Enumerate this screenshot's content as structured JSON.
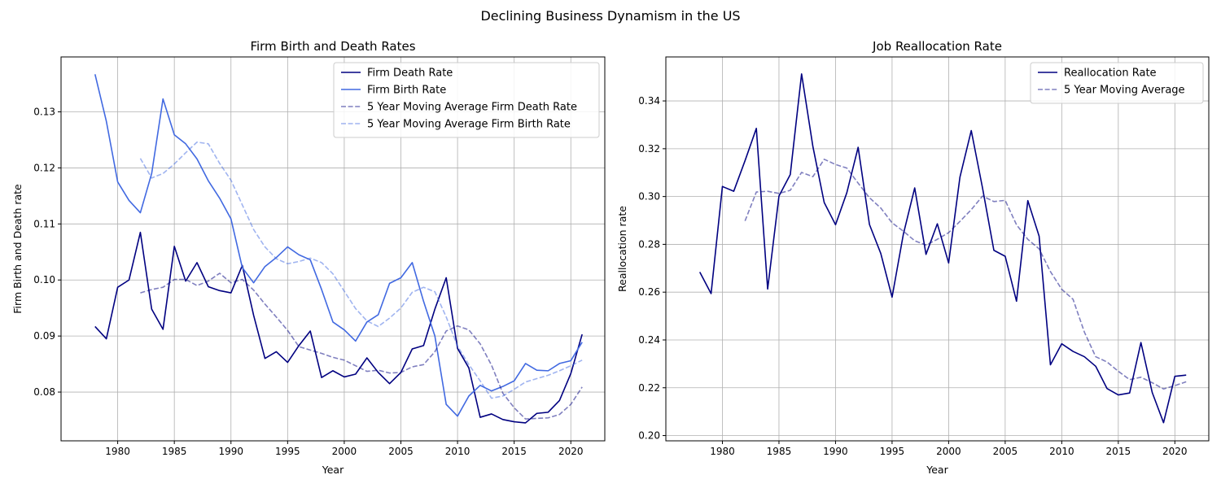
{
  "figure_title": "Declining Business Dynamism in the US",
  "chart_data": [
    {
      "type": "line",
      "title": "Firm Birth and Death Rates",
      "xlabel": "Year",
      "ylabel": "Firm Birth and Death rate",
      "xlim": [
        1975,
        2023
      ],
      "ylim": [
        0.0713,
        0.1398
      ],
      "xticks": [
        1980,
        1985,
        1990,
        1995,
        2000,
        2005,
        2010,
        2015,
        2020
      ],
      "xtick_labels": [
        "1980",
        "1985",
        "1990",
        "1995",
        "2000",
        "2005",
        "2010",
        "2015",
        "2020"
      ],
      "yticks": [
        0.08,
        0.09,
        0.1,
        0.11,
        0.12,
        0.13
      ],
      "ytick_labels": [
        "0.08",
        "0.09",
        "0.10",
        "0.11",
        "0.12",
        "0.13"
      ],
      "grid": true,
      "legend_position": "top-right",
      "series": [
        {
          "name": "Firm Death Rate",
          "color": "#000080",
          "dashed": false,
          "opacity": 1,
          "x": [
            1978,
            1979,
            1980,
            1981,
            1982,
            1983,
            1984,
            1985,
            1986,
            1987,
            1988,
            1989,
            1990,
            1991,
            1992,
            1993,
            1994,
            1995,
            1996,
            1997,
            1998,
            1999,
            2000,
            2001,
            2002,
            2003,
            2004,
            2005,
            2006,
            2007,
            2008,
            2009,
            2010,
            2011,
            2012,
            2013,
            2014,
            2015,
            2016,
            2017,
            2018,
            2019,
            2020,
            2021
          ],
          "values": [
            0.0917,
            0.0895,
            0.0987,
            0.1,
            0.1085,
            0.0948,
            0.0912,
            0.106,
            0.0998,
            0.1031,
            0.0988,
            0.0981,
            0.0977,
            0.1026,
            0.0937,
            0.086,
            0.0872,
            0.0853,
            0.0883,
            0.0909,
            0.0826,
            0.0838,
            0.0827,
            0.0832,
            0.0861,
            0.0835,
            0.0815,
            0.0835,
            0.0877,
            0.0883,
            0.0948,
            0.1004,
            0.0878,
            0.0843,
            0.0755,
            0.0761,
            0.0751,
            0.0747,
            0.0745,
            0.0762,
            0.0764,
            0.0785,
            0.0833,
            0.0903
          ]
        },
        {
          "name": "Firm Birth Rate",
          "color": "#4169e1",
          "dashed": false,
          "opacity": 1,
          "x": [
            1978,
            1979,
            1980,
            1981,
            1982,
            1983,
            1984,
            1985,
            1986,
            1987,
            1988,
            1989,
            1990,
            1991,
            1992,
            1993,
            1994,
            1995,
            1996,
            1997,
            1998,
            1999,
            2000,
            2001,
            2002,
            2003,
            2004,
            2005,
            2006,
            2007,
            2008,
            2009,
            2010,
            2011,
            2012,
            2013,
            2014,
            2015,
            2016,
            2017,
            2018,
            2019,
            2020,
            2021
          ],
          "values": [
            0.1367,
            0.1283,
            0.1175,
            0.1142,
            0.112,
            0.119,
            0.1323,
            0.1259,
            0.1243,
            0.1216,
            0.1177,
            0.1146,
            0.1109,
            0.1022,
            0.0995,
            0.1024,
            0.104,
            0.1059,
            0.1045,
            0.1036,
            0.0983,
            0.0925,
            0.0911,
            0.0891,
            0.0925,
            0.0938,
            0.0994,
            0.1004,
            0.1031,
            0.0962,
            0.09,
            0.0778,
            0.0757,
            0.0793,
            0.0812,
            0.0802,
            0.081,
            0.082,
            0.0851,
            0.0839,
            0.0838,
            0.0851,
            0.0856,
            0.0889
          ]
        },
        {
          "name": "5 Year Moving Average Firm Death Rate",
          "color": "#000080",
          "dashed": true,
          "opacity": 0.5,
          "x": [
            1982,
            1983,
            1984,
            1985,
            1986,
            1987,
            1988,
            1989,
            1990,
            1991,
            1992,
            1993,
            1994,
            1995,
            1996,
            1997,
            1998,
            1999,
            2000,
            2001,
            2002,
            2003,
            2004,
            2005,
            2006,
            2007,
            2008,
            2009,
            2010,
            2011,
            2012,
            2013,
            2014,
            2015,
            2016,
            2017,
            2018,
            2019,
            2020,
            2021
          ],
          "values": [
            0.0977,
            0.0983,
            0.0987,
            0.1001,
            0.1001,
            0.099,
            0.0998,
            0.1012,
            0.0995,
            0.1001,
            0.0982,
            0.0957,
            0.0934,
            0.091,
            0.0881,
            0.0875,
            0.0869,
            0.0862,
            0.0857,
            0.0847,
            0.0837,
            0.0839,
            0.0834,
            0.0835,
            0.0845,
            0.0849,
            0.0872,
            0.0909,
            0.0918,
            0.0911,
            0.0886,
            0.0848,
            0.0798,
            0.0772,
            0.0752,
            0.0753,
            0.0754,
            0.076,
            0.0778,
            0.0809
          ]
        },
        {
          "name": "5 Year Moving Average Firm Birth Rate",
          "color": "#4169e1",
          "dashed": true,
          "opacity": 0.5,
          "x": [
            1982,
            1983,
            1984,
            1985,
            1986,
            1987,
            1988,
            1989,
            1990,
            1991,
            1992,
            1993,
            1994,
            1995,
            1996,
            1997,
            1998,
            1999,
            2000,
            2001,
            2002,
            2003,
            2004,
            2005,
            2006,
            2007,
            2008,
            2009,
            2010,
            2011,
            2012,
            2013,
            2014,
            2015,
            2016,
            2017,
            2018,
            2019,
            2020,
            2021
          ],
          "values": [
            0.1217,
            0.1182,
            0.119,
            0.1207,
            0.1227,
            0.1246,
            0.1243,
            0.1208,
            0.1178,
            0.1134,
            0.109,
            0.1059,
            0.1038,
            0.1029,
            0.1033,
            0.1039,
            0.1031,
            0.1011,
            0.098,
            0.0949,
            0.0927,
            0.0917,
            0.0932,
            0.095,
            0.0978,
            0.0987,
            0.0979,
            0.0934,
            0.0882,
            0.0849,
            0.082,
            0.0789,
            0.0793,
            0.0805,
            0.0818,
            0.0824,
            0.083,
            0.0838,
            0.0847,
            0.0857
          ]
        }
      ]
    },
    {
      "type": "line",
      "title": "Job Reallocation Rate",
      "xlabel": "Year",
      "ylabel": "Reallocation rate",
      "xlim": [
        1975,
        2023
      ],
      "ylim": [
        0.1978,
        0.3584
      ],
      "xticks": [
        1980,
        1985,
        1990,
        1995,
        2000,
        2005,
        2010,
        2015,
        2020
      ],
      "xtick_labels": [
        "1980",
        "1985",
        "1990",
        "1995",
        "2000",
        "2005",
        "2010",
        "2015",
        "2020"
      ],
      "yticks": [
        0.2,
        0.22,
        0.24,
        0.26,
        0.28,
        0.3,
        0.32,
        0.34
      ],
      "ytick_labels": [
        "0.20",
        "0.22",
        "0.24",
        "0.26",
        "0.28",
        "0.30",
        "0.32",
        "0.34"
      ],
      "grid": true,
      "legend_position": "top-right",
      "series": [
        {
          "name": "Reallocation Rate",
          "color": "#000080",
          "dashed": false,
          "opacity": 1,
          "x": [
            1978,
            1979,
            1980,
            1981,
            1982,
            1983,
            1984,
            1985,
            1986,
            1987,
            1988,
            1989,
            1990,
            1991,
            1992,
            1993,
            1994,
            1995,
            1996,
            1997,
            1998,
            1999,
            2000,
            2001,
            2002,
            2003,
            2004,
            2005,
            2006,
            2007,
            2008,
            2009,
            2010,
            2011,
            2012,
            2013,
            2014,
            2015,
            2016,
            2017,
            2018,
            2019,
            2020,
            2021
          ],
          "values": [
            0.2684,
            0.2594,
            0.3042,
            0.3022,
            0.315,
            0.3285,
            0.2613,
            0.3002,
            0.3092,
            0.3513,
            0.3209,
            0.2975,
            0.2882,
            0.3016,
            0.3206,
            0.2883,
            0.2762,
            0.2579,
            0.2843,
            0.3036,
            0.2758,
            0.2886,
            0.2722,
            0.3081,
            0.3276,
            0.3035,
            0.2775,
            0.275,
            0.2562,
            0.2983,
            0.2834,
            0.2296,
            0.2384,
            0.2352,
            0.233,
            0.229,
            0.2197,
            0.217,
            0.2178,
            0.2389,
            0.218,
            0.2054,
            0.2248,
            0.2253
          ]
        },
        {
          "name": "5 Year Moving Average",
          "color": "#000080",
          "dashed": true,
          "opacity": 0.5,
          "x": [
            1982,
            1983,
            1984,
            1985,
            1986,
            1987,
            1988,
            1989,
            1990,
            1991,
            1992,
            1993,
            1994,
            1995,
            1996,
            1997,
            1998,
            1999,
            2000,
            2001,
            2002,
            2003,
            2004,
            2005,
            2006,
            2007,
            2008,
            2009,
            2010,
            2011,
            2012,
            2013,
            2014,
            2015,
            2016,
            2017,
            2018,
            2019,
            2020,
            2021
          ],
          "values": [
            0.2898,
            0.3019,
            0.3022,
            0.3013,
            0.3026,
            0.3101,
            0.3083,
            0.3156,
            0.3134,
            0.3119,
            0.3056,
            0.2995,
            0.2952,
            0.289,
            0.2855,
            0.2815,
            0.2797,
            0.2821,
            0.2849,
            0.2896,
            0.2945,
            0.3002,
            0.2979,
            0.2984,
            0.2882,
            0.2821,
            0.2781,
            0.2686,
            0.2612,
            0.257,
            0.2433,
            0.233,
            0.2308,
            0.2269,
            0.2234,
            0.2244,
            0.2221,
            0.2195,
            0.2209,
            0.2225
          ]
        }
      ]
    }
  ]
}
